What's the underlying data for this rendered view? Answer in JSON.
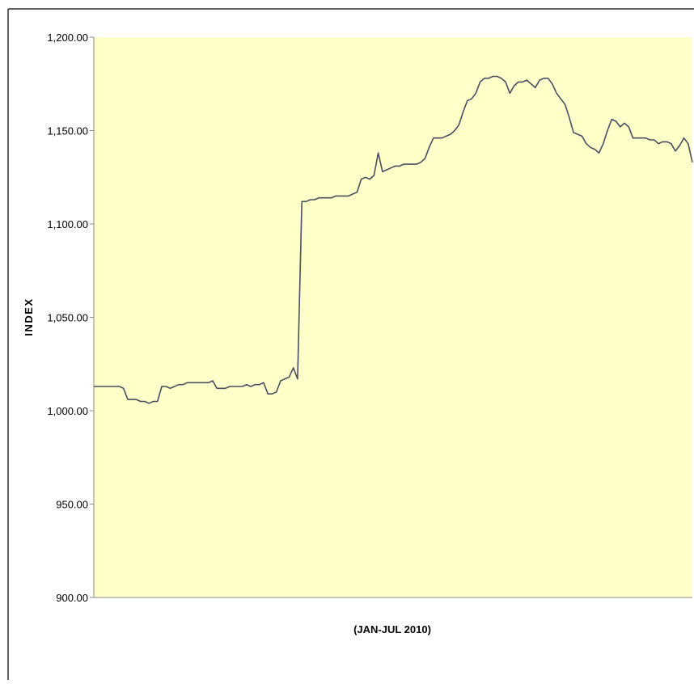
{
  "colors": {
    "plot_background": "#FFFFC9",
    "line": "#4A4E63",
    "axis": "#8A8A8A",
    "frame": "#2E2E2E",
    "text": "#000000"
  },
  "chart_data": {
    "type": "line",
    "title": "",
    "xlabel": "(JAN-JUL 2010)",
    "ylabel": "INDEX",
    "ylim": [
      900,
      1200
    ],
    "grid": false,
    "legend": "none",
    "y_ticks": [
      {
        "value": 1200,
        "label": "1,200.00"
      },
      {
        "value": 1150,
        "label": "1,150.00"
      },
      {
        "value": 1100,
        "label": "1,100.00"
      },
      {
        "value": 1050,
        "label": "1,050.00"
      },
      {
        "value": 1000,
        "label": "1,000.00"
      },
      {
        "value": 950,
        "label": "950.00"
      },
      {
        "value": 900,
        "label": "900.00"
      }
    ],
    "series": [
      {
        "values": [
          1013,
          1013,
          1013,
          1013,
          1013,
          1013,
          1013,
          1012,
          1006,
          1006,
          1006,
          1005,
          1005,
          1004,
          1005,
          1005,
          1013,
          1013,
          1012,
          1013,
          1014,
          1014,
          1015,
          1015,
          1015,
          1015,
          1015,
          1015,
          1016,
          1012,
          1012,
          1012,
          1013,
          1013,
          1013,
          1013,
          1014,
          1013,
          1014,
          1014,
          1015,
          1009,
          1009,
          1010,
          1016,
          1017,
          1018,
          1023,
          1017,
          1112,
          1112,
          1113,
          1113,
          1114,
          1114,
          1114,
          1114,
          1115,
          1115,
          1115,
          1115,
          1116,
          1117,
          1124,
          1125,
          1124,
          1126,
          1138,
          1128,
          1129,
          1130,
          1131,
          1131,
          1132,
          1132,
          1132,
          1132,
          1133,
          1135,
          1141,
          1146,
          1146,
          1146,
          1147,
          1148,
          1150,
          1153,
          1160,
          1166,
          1167,
          1170,
          1176,
          1178,
          1178,
          1179,
          1179,
          1178,
          1176,
          1170,
          1174,
          1176,
          1176,
          1177,
          1175,
          1173,
          1177,
          1178,
          1178,
          1175,
          1170,
          1167,
          1164,
          1157,
          1149,
          1148,
          1147,
          1143,
          1141,
          1140,
          1138,
          1143,
          1150,
          1156,
          1155,
          1152,
          1154,
          1152,
          1146,
          1146,
          1146,
          1146,
          1145,
          1145,
          1143,
          1144,
          1144,
          1143,
          1139,
          1142,
          1146,
          1143,
          1133
        ]
      }
    ]
  }
}
